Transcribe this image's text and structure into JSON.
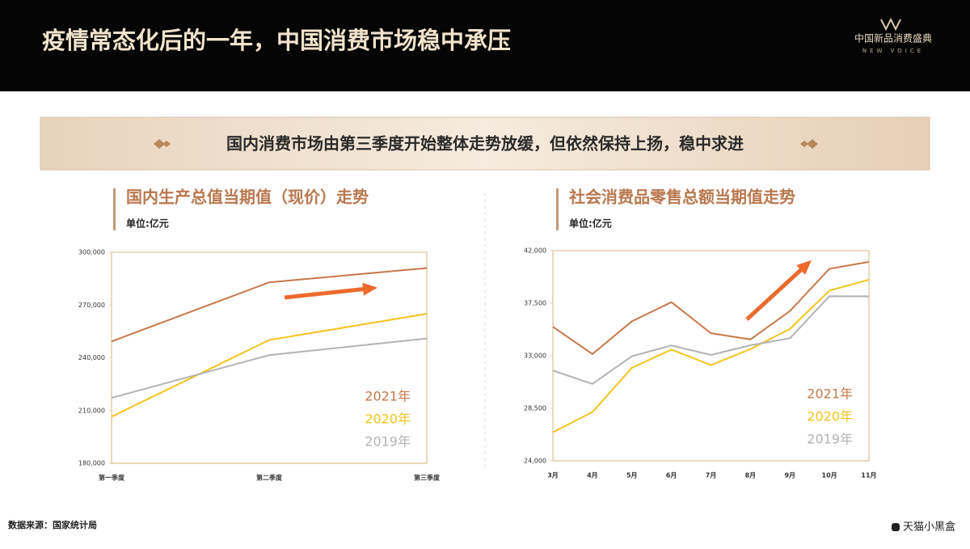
{
  "header": {
    "title": "疫情常态化后的一年，中国消费市场稳中承压",
    "logo": "中国新品消费盛典",
    "logo_sub": "NEW VOICE"
  },
  "banner": "国内消费市场由第三季度开始整体走势放缓，但依然保持上扬，稳中求进",
  "chart_data": [
    {
      "type": "line",
      "title": "国内生产总值当期值（现价）走势",
      "subtitle": "单位:亿元",
      "categories": [
        "第一季度",
        "第二季度",
        "第三季度"
      ],
      "series": [
        {
          "name": "2021年",
          "color": "#c8784a",
          "values": [
            249300,
            282900,
            291000
          ]
        },
        {
          "name": "2020年",
          "color": "#f5c31c",
          "values": [
            206500,
            250100,
            265000
          ]
        },
        {
          "name": "2019年",
          "color": "#b3b3b3",
          "values": [
            217200,
            241500,
            251000
          ]
        }
      ],
      "ylim": [
        180000,
        300000
      ],
      "yticks": [
        {
          "value": 180000,
          "label": "180,000"
        },
        {
          "value": 210000,
          "label": "210,000"
        },
        {
          "value": 240000,
          "label": "240,000"
        },
        {
          "value": 270000,
          "label": "270,000"
        },
        {
          "value": 300000,
          "label": "300,000"
        }
      ]
    },
    {
      "type": "line",
      "title": "社会消费品零售总额当期值走势",
      "subtitle": "单位:亿元",
      "categories": [
        "3月",
        "4月",
        "5月",
        "6月",
        "7月",
        "8月",
        "9月",
        "10月",
        "11月"
      ],
      "series": [
        {
          "name": "2021年",
          "color": "#c8784a",
          "values": [
            35480,
            33150,
            35950,
            37590,
            34930,
            34400,
            36830,
            40450,
            41040
          ]
        },
        {
          "name": "2020年",
          "color": "#f5c31c",
          "values": [
            26450,
            28180,
            31970,
            33530,
            32200,
            33570,
            35300,
            38580,
            39510
          ]
        },
        {
          "name": "2019年",
          "color": "#b3b3b3",
          "values": [
            31730,
            30590,
            32960,
            33880,
            33070,
            33900,
            34500,
            38100,
            38090
          ]
        }
      ],
      "ylim": [
        24000,
        42000
      ],
      "yticks": [
        {
          "value": 24000,
          "label": "24,000"
        },
        {
          "value": 28500,
          "label": "28,500"
        },
        {
          "value": 33000,
          "label": "33,000"
        },
        {
          "value": 37500,
          "label": "37,500"
        },
        {
          "value": 42000,
          "label": "42,000"
        }
      ]
    }
  ],
  "footer": {
    "source": "数据来源：国家统计局",
    "brand": "天猫小黑盒"
  }
}
